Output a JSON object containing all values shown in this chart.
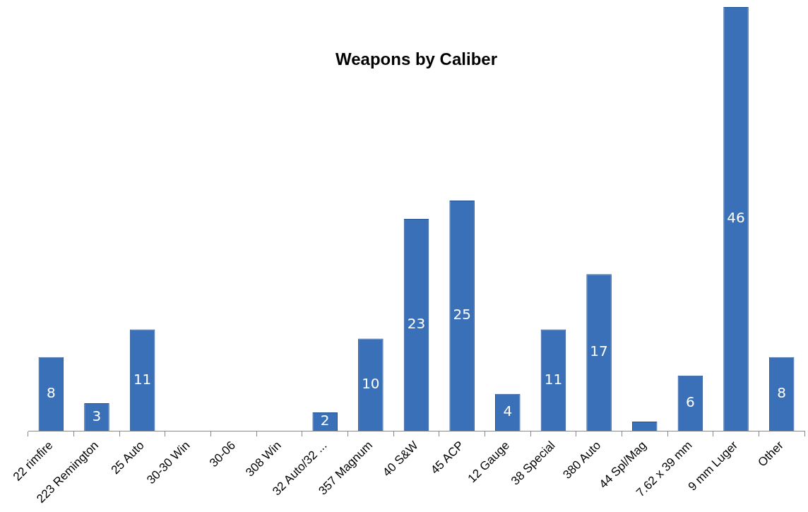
{
  "chart_data": {
    "type": "bar",
    "title": "Weapons by Caliber",
    "categories": [
      "22 rimfire",
      "223 Remington",
      "25 Auto",
      "30-30 Win",
      "30-06",
      "308 Win",
      "32 Auto/32 ...",
      "357 Magnum",
      "40 S&W",
      "45 ACP",
      "12 Gauge",
      "38 Special",
      "380 Auto",
      "44 Spl/Mag",
      "7.62 x 39 mm",
      "9 mm Luger",
      "Other"
    ],
    "values": [
      8,
      3,
      11,
      0,
      0,
      0,
      2,
      10,
      23,
      25,
      4,
      11,
      17,
      1,
      6,
      46,
      8
    ],
    "value_labels": [
      "8",
      "3",
      "11",
      null,
      null,
      null,
      "2",
      "10",
      "23",
      "25",
      "4",
      "11",
      "17",
      null,
      "6",
      "46",
      "8"
    ],
    "color": "#3a70b8",
    "grid": false,
    "legend": false
  }
}
